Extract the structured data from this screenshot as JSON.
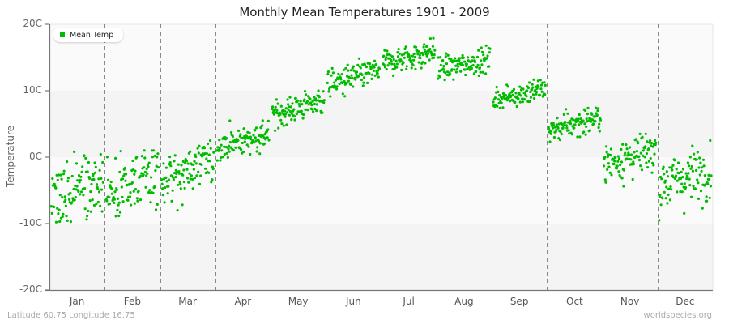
{
  "title": "Monthly Mean Temperatures 1901 - 2009",
  "footer": {
    "location": "Latitude 60.75 Longitude 16.75",
    "source": "worldspecies.org"
  },
  "legend": {
    "label": "Mean Temp",
    "color": "#00bb00"
  },
  "chart_data": {
    "type": "scatter",
    "title": "Monthly Mean Temperatures 1901 - 2009",
    "xlabel": "",
    "ylabel": "Temperature",
    "categories": [
      "Jan",
      "Feb",
      "Mar",
      "Apr",
      "May",
      "Jun",
      "Jul",
      "Aug",
      "Sep",
      "Oct",
      "Nov",
      "Dec"
    ],
    "yticks": [
      "20C",
      "10C",
      "0C",
      "-10C",
      "-20C"
    ],
    "ylim": [
      -20,
      20
    ],
    "years": [
      1901,
      2009
    ],
    "points_per_month": 109,
    "grid": "alternating horizontal bands, dashed vertical month separators",
    "legend_position": "top-left",
    "series": [
      {
        "name": "Mean Temp",
        "color": "#00bb00",
        "monthly_mean": [
          -4.5,
          -4.0,
          -2.0,
          2.5,
          7.5,
          12.0,
          15.0,
          14.0,
          9.5,
          5.0,
          0.0,
          -3.0
        ],
        "monthly_spread_sd": [
          3.6,
          3.8,
          2.6,
          1.6,
          1.5,
          1.4,
          1.4,
          1.3,
          1.2,
          1.4,
          2.2,
          3.0
        ],
        "monthly_min": [
          -14.5,
          -14.3,
          -8.0,
          -0.5,
          3.5,
          8.0,
          12.0,
          11.0,
          6.5,
          1.5,
          -5.0,
          -11.5
        ],
        "monthly_max": [
          1.5,
          1.0,
          2.5,
          5.5,
          10.0,
          15.0,
          19.0,
          17.5,
          13.0,
          8.5,
          3.5,
          2.5
        ],
        "trend_within_month": [
          3.0,
          3.5,
          3.0,
          2.0,
          2.5,
          2.5,
          2.0,
          1.5,
          1.5,
          2.0,
          2.0,
          2.0
        ]
      }
    ]
  }
}
